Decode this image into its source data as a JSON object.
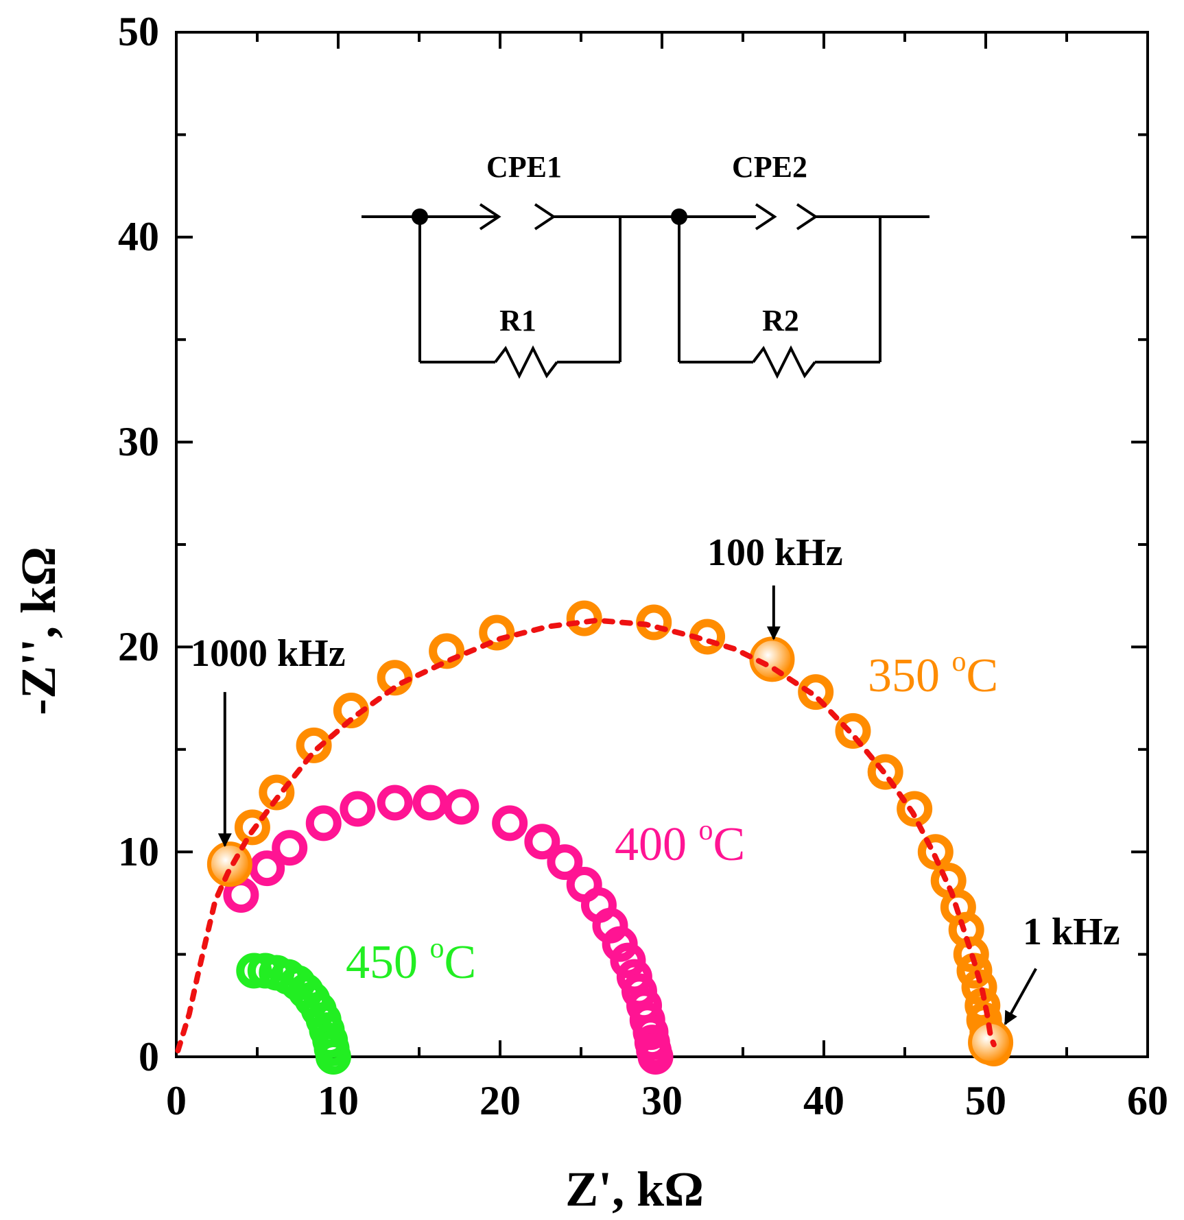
{
  "chart_data": {
    "type": "scatter",
    "title": "",
    "xlabel": "Z', kΩ",
    "ylabel": "-Z'', kΩ",
    "xlim": [
      0,
      60
    ],
    "ylim": [
      0,
      50
    ],
    "xticks": [
      0,
      10,
      20,
      30,
      40,
      50,
      60
    ],
    "yticks": [
      0,
      10,
      20,
      30,
      40,
      50
    ],
    "series": [
      {
        "name": "350 °C",
        "label_main": "350 ",
        "label_sup": "o",
        "label_tail": "C",
        "color": "#ff8c00",
        "points": [
          [
            3.3,
            9.4
          ],
          [
            4.7,
            11.2
          ],
          [
            6.2,
            12.9
          ],
          [
            8.5,
            15.2
          ],
          [
            10.8,
            16.9
          ],
          [
            13.5,
            18.5
          ],
          [
            16.7,
            19.8
          ],
          [
            19.8,
            20.7
          ],
          [
            25.2,
            21.4
          ],
          [
            29.5,
            21.2
          ],
          [
            32.8,
            20.5
          ],
          [
            36.8,
            19.4
          ],
          [
            39.5,
            17.8
          ],
          [
            41.8,
            15.9
          ],
          [
            43.8,
            13.9
          ],
          [
            45.6,
            12.1
          ],
          [
            46.9,
            10.0
          ],
          [
            47.7,
            8.6
          ],
          [
            48.3,
            7.3
          ],
          [
            48.8,
            6.2
          ],
          [
            49.1,
            5.0
          ],
          [
            49.3,
            4.2
          ],
          [
            49.6,
            3.4
          ],
          [
            49.8,
            2.5
          ],
          [
            49.9,
            1.8
          ],
          [
            50.1,
            1.2
          ],
          [
            50.3,
            0.7
          ],
          [
            50.5,
            0.4
          ]
        ],
        "fit": [
          [
            0.1,
            0.3
          ],
          [
            0.8,
            2.1
          ],
          [
            1.3,
            3.9
          ],
          [
            1.8,
            5.6
          ],
          [
            2.4,
            7.6
          ],
          [
            3.2,
            9.0
          ],
          [
            4.5,
            10.8
          ],
          [
            6.2,
            12.6
          ],
          [
            8.5,
            14.9
          ],
          [
            11.0,
            16.6
          ],
          [
            13.8,
            18.2
          ],
          [
            17.0,
            19.4
          ],
          [
            20.0,
            20.4
          ],
          [
            23.0,
            21.0
          ],
          [
            26.0,
            21.3
          ],
          [
            29.0,
            21.1
          ],
          [
            32.0,
            20.5
          ],
          [
            34.5,
            19.9
          ],
          [
            36.8,
            19.0
          ],
          [
            39.5,
            17.6
          ],
          [
            41.8,
            15.7
          ],
          [
            43.8,
            13.8
          ],
          [
            45.5,
            11.9
          ],
          [
            46.8,
            9.9
          ],
          [
            47.9,
            8.0
          ],
          [
            48.6,
            6.3
          ],
          [
            49.3,
            4.6
          ],
          [
            49.8,
            3.2
          ],
          [
            50.1,
            2.0
          ],
          [
            50.3,
            1.0
          ],
          [
            50.5,
            0.6
          ]
        ],
        "highlight": [
          [
            3.3,
            9.4
          ],
          [
            36.8,
            19.4
          ],
          [
            50.3,
            0.7
          ]
        ]
      },
      {
        "name": "400 °C",
        "label_main": "400 ",
        "label_sup": "o",
        "label_tail": "C",
        "color": "#ff1493",
        "points": [
          [
            4.0,
            7.9
          ],
          [
            5.6,
            9.2
          ],
          [
            7.0,
            10.2
          ],
          [
            9.1,
            11.4
          ],
          [
            11.2,
            12.1
          ],
          [
            13.5,
            12.4
          ],
          [
            15.7,
            12.4
          ],
          [
            17.6,
            12.2
          ],
          [
            20.6,
            11.4
          ],
          [
            22.6,
            10.5
          ],
          [
            24.0,
            9.5
          ],
          [
            25.2,
            8.4
          ],
          [
            26.1,
            7.4
          ],
          [
            26.8,
            6.4
          ],
          [
            27.4,
            5.5
          ],
          [
            27.9,
            4.7
          ],
          [
            28.3,
            3.9
          ],
          [
            28.6,
            3.2
          ],
          [
            28.9,
            2.5
          ],
          [
            29.1,
            1.8
          ],
          [
            29.3,
            1.2
          ],
          [
            29.4,
            0.7
          ],
          [
            29.5,
            0.3
          ],
          [
            29.6,
            0.0
          ]
        ]
      },
      {
        "name": "450 °C",
        "label_main": "450 ",
        "label_sup": "o",
        "label_tail": "C",
        "color": "#22ee22",
        "points": [
          [
            4.8,
            4.2
          ],
          [
            5.5,
            4.2
          ],
          [
            6.2,
            4.1
          ],
          [
            6.9,
            3.9
          ],
          [
            7.5,
            3.6
          ],
          [
            8.0,
            3.2
          ],
          [
            8.4,
            2.8
          ],
          [
            8.8,
            2.3
          ],
          [
            9.1,
            1.8
          ],
          [
            9.3,
            1.3
          ],
          [
            9.5,
            0.8
          ],
          [
            9.6,
            0.4
          ],
          [
            9.7,
            0.0
          ]
        ]
      }
    ],
    "annotations": [
      {
        "text": "1000 kHz",
        "text_x": 0.9,
        "text_y": 19.3,
        "arrow_from": [
          3.0,
          17.8
        ],
        "arrow_to": [
          3.0,
          10.3
        ]
      },
      {
        "text": "100 kHz",
        "text_x": 32.8,
        "text_y": 24.6,
        "arrow_from": [
          36.9,
          23.0
        ],
        "arrow_to": [
          36.9,
          20.4
        ]
      },
      {
        "text": "1 kHz",
        "text_x": 52.3,
        "text_y": 5.8,
        "arrow_from": [
          53.1,
          4.3
        ],
        "arrow_to": [
          51.2,
          1.6
        ]
      }
    ],
    "temperature_labels": [
      {
        "series": 0,
        "x": 43.7,
        "y": 18.4
      },
      {
        "series": 1,
        "x": 27.4,
        "y": 10.3
      },
      {
        "series": 2,
        "x": 10.5,
        "y": 4.7
      }
    ],
    "inset": {
      "description": "equivalent circuit",
      "cpe1": "CPE1",
      "cpe2": "CPE2",
      "r1": "R1",
      "r2": "R2"
    }
  }
}
